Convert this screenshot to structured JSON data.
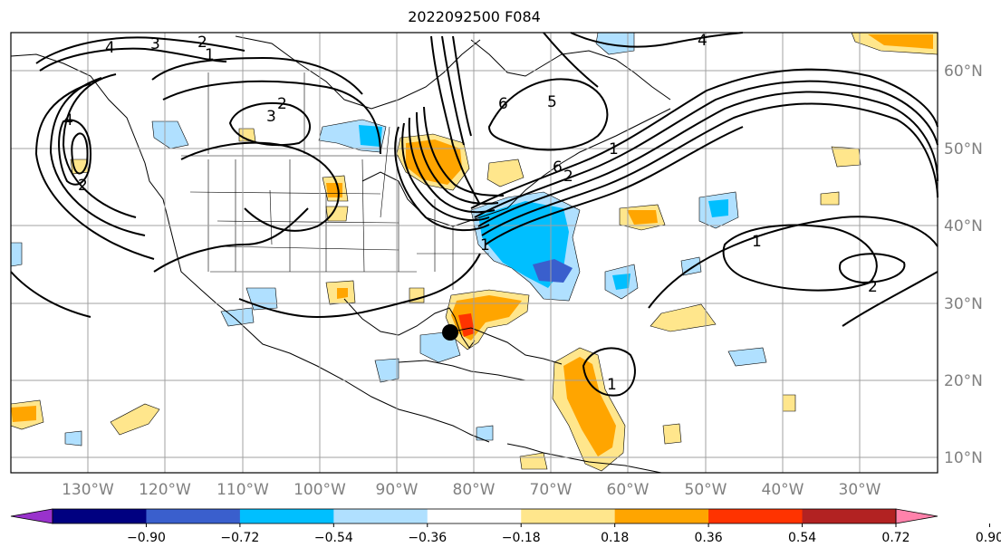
{
  "title": "2022092500 F084",
  "map": {
    "lon_labels": [
      "130°W",
      "120°W",
      "110°W",
      "100°W",
      "90°W",
      "80°W",
      "70°W",
      "60°W",
      "50°W",
      "40°W",
      "30°W"
    ],
    "lat_labels": [
      "60°N",
      "50°N",
      "40°N",
      "30°N",
      "20°N",
      "10°N"
    ],
    "contour_labels": [
      "4",
      "3",
      "2",
      "1",
      "2",
      "3",
      "4",
      "2",
      "1",
      "6",
      "5",
      "4",
      "1",
      "2",
      "6",
      "1",
      "2",
      "1"
    ],
    "marker": "storm-center-dot"
  },
  "colorbar": {
    "ticks": [
      "−0.90",
      "−0.72",
      "−0.54",
      "−0.36",
      "−0.18",
      "0.18",
      "0.36",
      "0.54",
      "0.72",
      "0.90"
    ],
    "colors": [
      "#9932cc",
      "#000080",
      "#3a5fcd",
      "#00bfff",
      "#b0e0ff",
      "#ffffff",
      "#ffe68c",
      "#ffa500",
      "#ff3300",
      "#b22222",
      "#ff82ab"
    ]
  },
  "colors": {
    "shade_light_blue": "#b0e0ff",
    "shade_blue": "#00bfff",
    "shade_dark_blue": "#3a5fcd",
    "shade_light_orange": "#ffe68c",
    "shade_orange": "#ffa500",
    "shade_red": "#ff3300"
  }
}
